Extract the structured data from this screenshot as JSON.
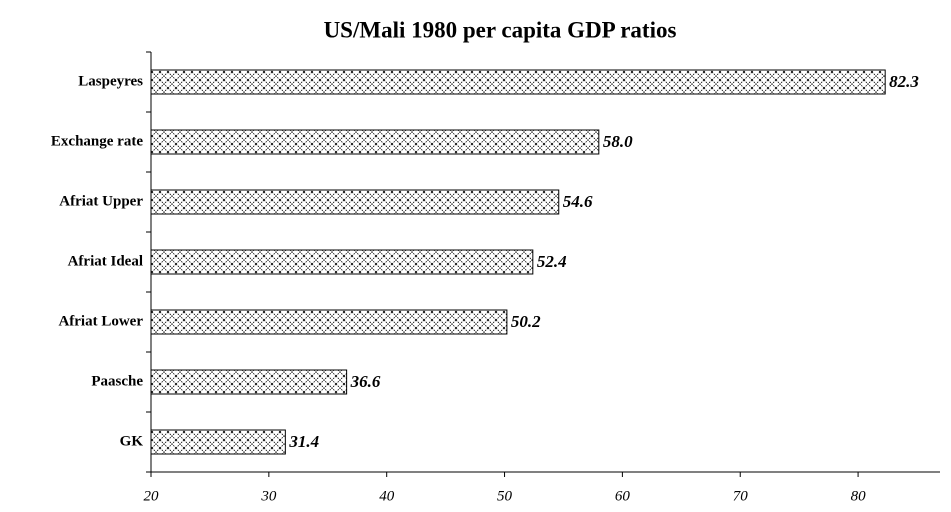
{
  "chart_data": {
    "type": "bar",
    "orientation": "horizontal",
    "title": "US/Mali 1980 per capita GDP ratios",
    "categories": [
      "Laspeyres",
      "Exchange rate",
      "Afriat Upper",
      "Afriat Ideal",
      "Afriat Lower",
      "Paasche",
      "GK"
    ],
    "values": [
      82.3,
      58.0,
      54.6,
      52.4,
      50.2,
      36.6,
      31.4
    ],
    "value_labels": [
      "82.3",
      "58.0",
      "54.6",
      "52.4",
      "50.2",
      "36.6",
      "31.4"
    ],
    "color": "#000000",
    "xlim": [
      20,
      87.8
    ],
    "xticks": [
      20,
      30,
      40,
      50,
      60,
      70,
      80
    ],
    "grid": false
  }
}
